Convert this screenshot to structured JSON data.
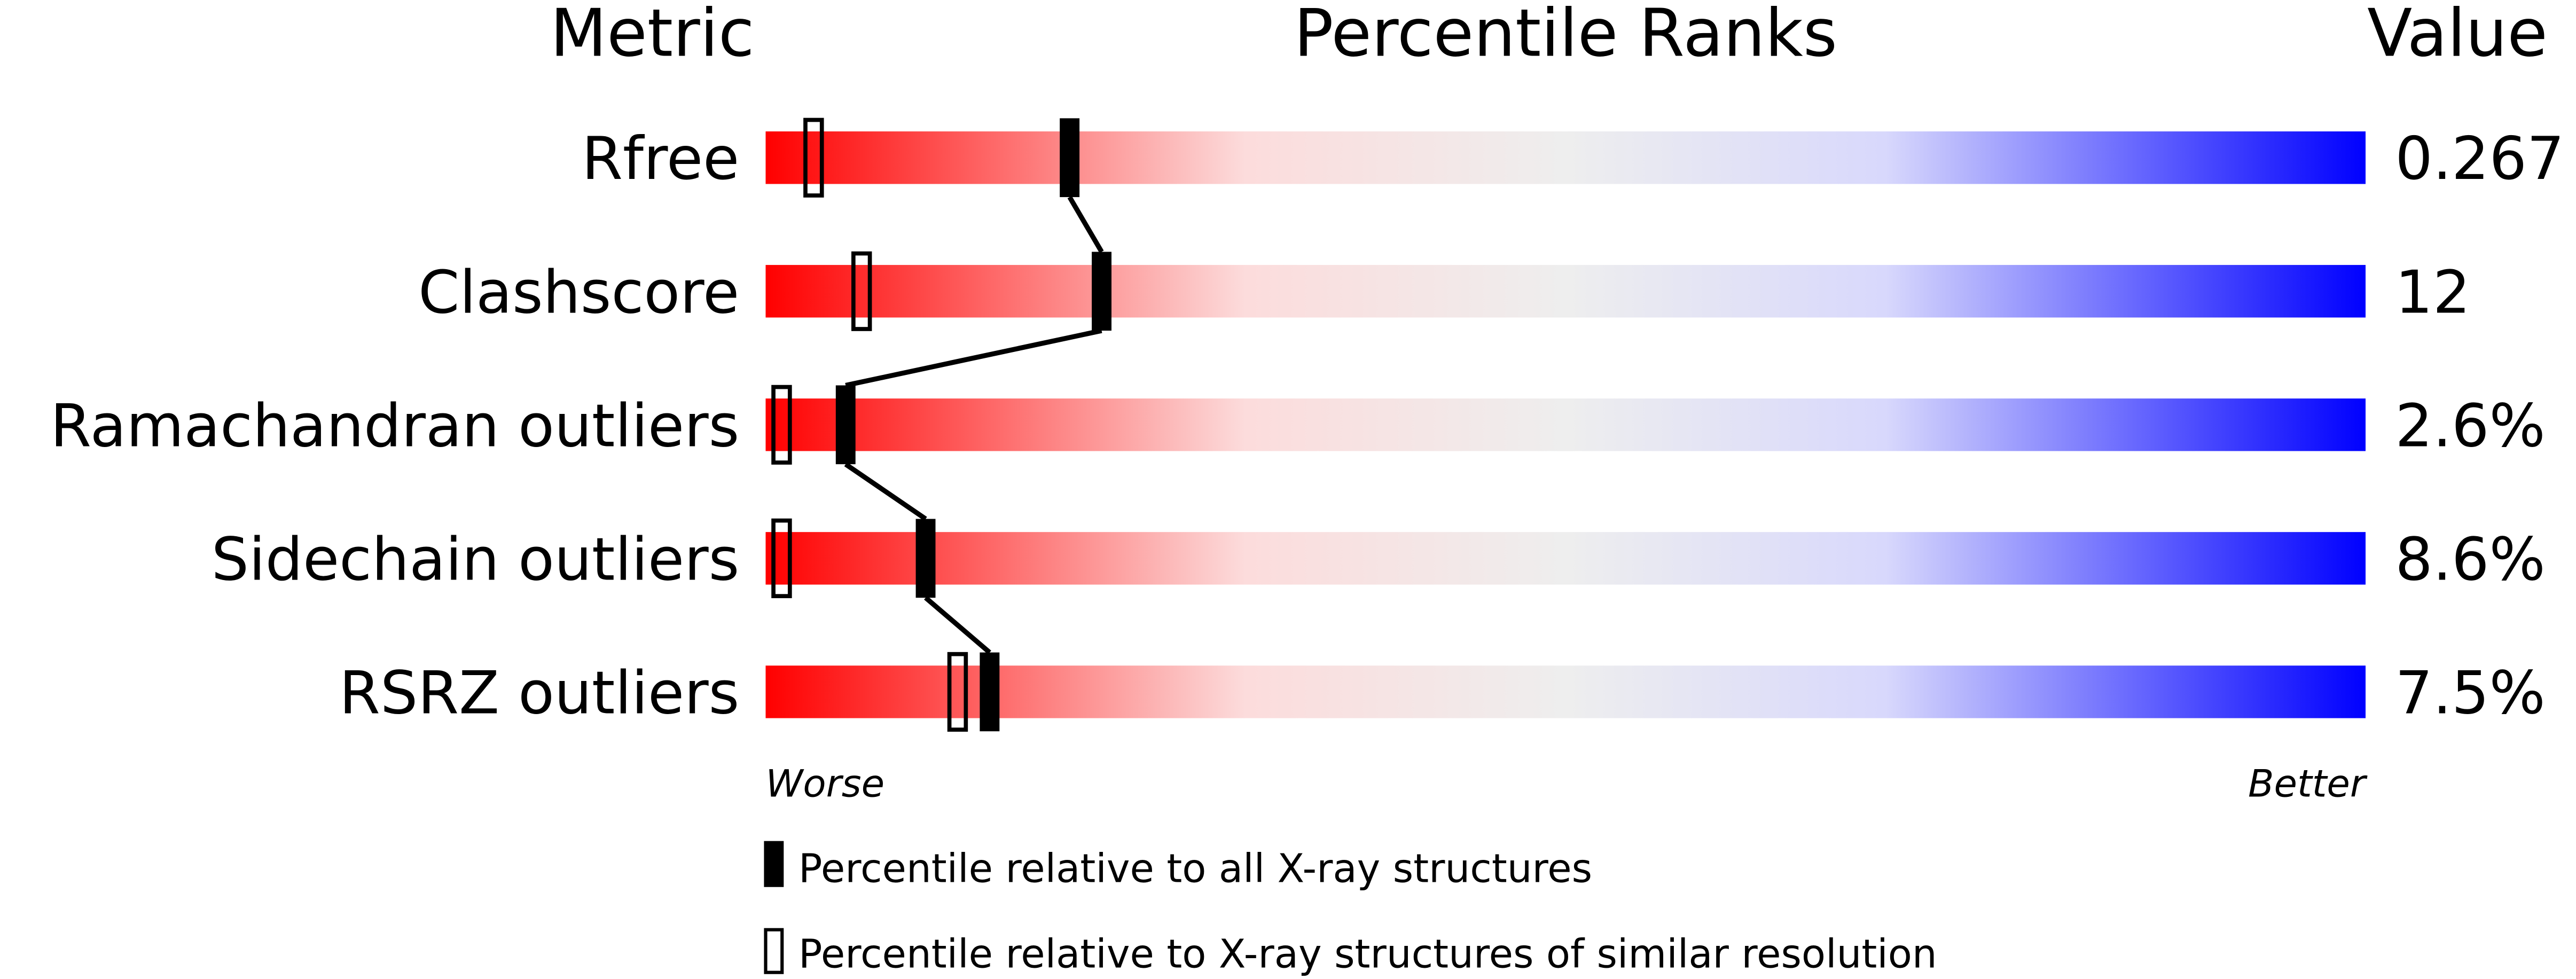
{
  "header": {
    "metric": "Metric",
    "percentile": "Percentile Ranks",
    "value": "Value"
  },
  "rows": [
    {
      "metric": "Rfree",
      "value": "0.267",
      "percentile_all": 19,
      "percentile_similar": 3
    },
    {
      "metric": "Clashscore",
      "value": "12",
      "percentile_all": 21,
      "percentile_similar": 6
    },
    {
      "metric": "Ramachandran outliers",
      "value": "2.6%",
      "percentile_all": 5,
      "percentile_similar": 1
    },
    {
      "metric": "Sidechain outliers",
      "value": "8.6%",
      "percentile_all": 10,
      "percentile_similar": 1
    },
    {
      "metric": "RSRZ outliers",
      "value": "7.5%",
      "percentile_all": 14,
      "percentile_similar": 12
    }
  ],
  "xlim": [
    0,
    100
  ],
  "axis": {
    "worse": "Worse",
    "better": "Better"
  },
  "legend": {
    "all": "Percentile relative to all X-ray structures",
    "similar": "Percentile relative to X-ray structures of similar resolution"
  }
}
